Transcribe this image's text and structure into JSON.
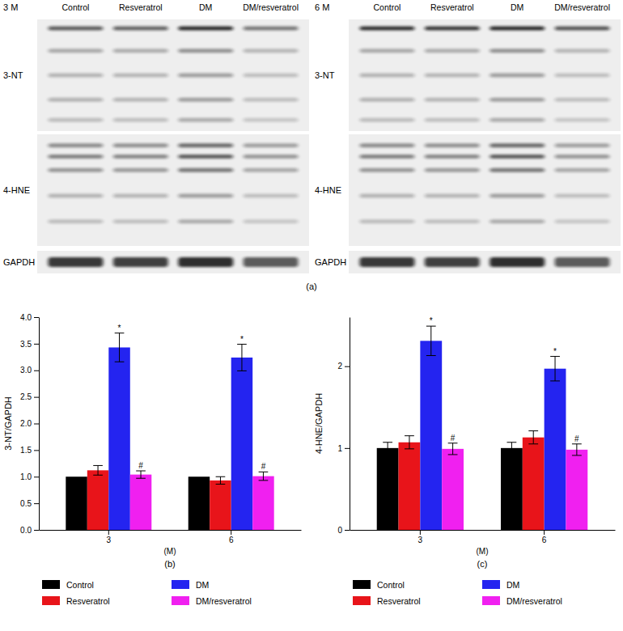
{
  "blot_panel": {
    "label": "(a)",
    "blots": [
      {
        "title": "3 M",
        "lanes": [
          "Control",
          "Resveratrol",
          "DM",
          "DM/resveratrol"
        ],
        "rows": [
          "3-NT",
          "4-HNE",
          "GAPDH"
        ]
      },
      {
        "title": "6 M",
        "lanes": [
          "Control",
          "Resveratrol",
          "DM",
          "DM/resveratrol"
        ],
        "rows": [
          "3-NT",
          "4-HNE",
          "GAPDH"
        ]
      }
    ]
  },
  "chart_data": [
    {
      "type": "bar",
      "panel_label": "(b)",
      "x_label": "(M)",
      "y_label": "3-NT/GAPDH",
      "categories": [
        "3",
        "6"
      ],
      "ylim": [
        0,
        4
      ],
      "yticks": [
        {
          "value": 0,
          "label": "0.0"
        },
        0.5,
        {
          "value": 1,
          "label": "1.0"
        },
        1.5,
        {
          "value": 2,
          "label": "2.0"
        },
        2.5,
        {
          "value": 3,
          "label": "3.0"
        },
        3.5,
        {
          "value": 4,
          "label": "4.0"
        }
      ],
      "grid": false,
      "legend": "bottom",
      "series": [
        {
          "name": "Control",
          "color": "#000000",
          "values": [
            1.0,
            1.0
          ],
          "errors": [
            null,
            null
          ]
        },
        {
          "name": "Resveratrol",
          "color": "#e8141a",
          "values": [
            1.12,
            0.93
          ],
          "errors": [
            0.09,
            0.07
          ]
        },
        {
          "name": "DM",
          "color": "#2424f0",
          "values": [
            3.43,
            3.24
          ],
          "errors": [
            0.27,
            0.25
          ],
          "annotations": [
            "*",
            "*"
          ]
        },
        {
          "name": "DM/resveratrol",
          "color": "#f020f0",
          "values": [
            1.04,
            1.01
          ],
          "errors": [
            0.07,
            0.08
          ],
          "annotations": [
            "#",
            "#"
          ]
        }
      ]
    },
    {
      "type": "bar",
      "panel_label": "(c)",
      "x_label": "(M)",
      "y_label": "4-HNE/GAPDH",
      "categories": [
        "3",
        "6"
      ],
      "ylim": [
        0,
        2.6
      ],
      "yticks": [
        0,
        1,
        2
      ],
      "grid": false,
      "legend": "bottom",
      "series": [
        {
          "name": "Control",
          "color": "#000000",
          "values": [
            1.0,
            1.0
          ],
          "errors": [
            0.07,
            0.07
          ]
        },
        {
          "name": "Resveratrol",
          "color": "#e8141a",
          "values": [
            1.07,
            1.13
          ],
          "errors": [
            0.08,
            0.08
          ]
        },
        {
          "name": "DM",
          "color": "#2424f0",
          "values": [
            2.31,
            1.97
          ],
          "errors": [
            0.18,
            0.15
          ],
          "annotations": [
            "*",
            "*"
          ]
        },
        {
          "name": "DM/resveratrol",
          "color": "#f020f0",
          "values": [
            0.99,
            0.98
          ],
          "errors": [
            0.07,
            0.07
          ],
          "annotations": [
            "#",
            "#"
          ]
        }
      ]
    }
  ]
}
